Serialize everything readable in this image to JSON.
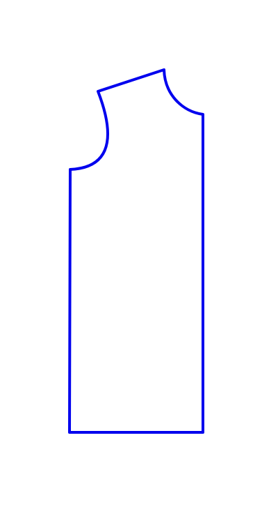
{
  "diagram": {
    "type": "sewing-pattern-piece",
    "piece": "bodice-front",
    "outline_color": "#0000ee",
    "background_color": "#ffffff"
  }
}
